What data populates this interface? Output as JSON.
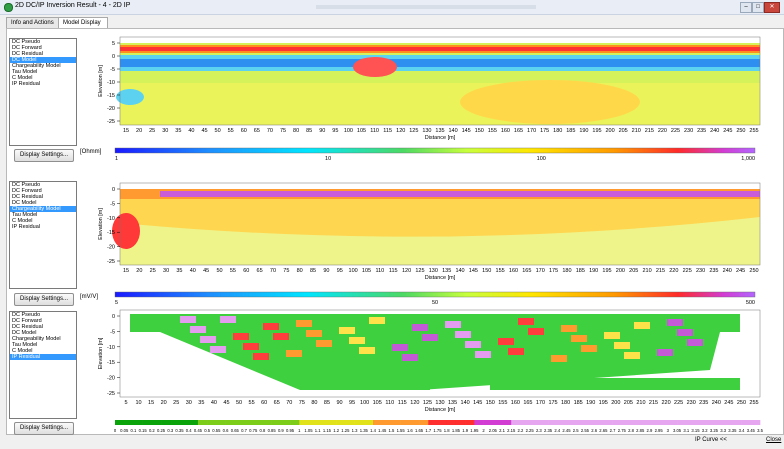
{
  "window": {
    "title": "2D DC/IP Inversion Result - 4 - 2D IP",
    "btn_min": "–",
    "btn_max": "□",
    "btn_close": "✕"
  },
  "tabs": [
    "Info and Actions",
    "Model Display"
  ],
  "panels": [
    {
      "items": [
        "DC Pseudo",
        "DC Forward",
        "DC Residual",
        "DC Model",
        "Chargeability Model",
        "Tau Model",
        "C Model",
        "IP Residual"
      ],
      "selected": 3,
      "display_settings": "Display Settings...",
      "colorbar_unit": "[Ohmm]",
      "colorbar_labels": [
        "1",
        "10",
        "100",
        "1,000"
      ]
    },
    {
      "items": [
        "DC Pseudo",
        "DC Forward",
        "DC Residual",
        "DC Model",
        "Chargeability Model",
        "Tau Model",
        "C Model",
        "IP Residual"
      ],
      "selected": 4,
      "display_settings": "Display Settings...",
      "colorbar_unit": "[mV/V]",
      "colorbar_labels": [
        "5",
        "50",
        "500"
      ]
    },
    {
      "items": [
        "DC Pseudo",
        "DC Forward",
        "DC Residual",
        "DC Model",
        "Chargeability Model",
        "Tau Model",
        "C Model",
        "IP Residual"
      ],
      "selected": 7,
      "display_settings": "Display Settings...",
      "colorbar_unit": "",
      "colorbar_labels": [
        "0",
        "0.05",
        "0.1",
        "0.15",
        "0.2",
        "0.25",
        "0.3",
        "0.35",
        "0.4",
        "0.45",
        "0.5",
        "0.55",
        "0.6",
        "0.65",
        "0.7",
        "0.75",
        "0.8",
        "0.85",
        "0.9",
        "0.95",
        "1",
        "1.05",
        "1.1",
        "1.15",
        "1.2",
        "1.25",
        "1.3",
        "1.35",
        "1.4",
        "1.45",
        "1.5",
        "1.55",
        "1.6",
        "1.65",
        "1.7",
        "1.75",
        "1.8",
        "1.85",
        "1.9",
        "1.95",
        "2",
        "2.05",
        "2.1",
        "2.15",
        "2.2",
        "2.25",
        "2.3",
        "2.35",
        "2.4",
        "2.45",
        "2.5",
        "2.55",
        "2.6",
        "2.65",
        "2.7",
        "2.75",
        "2.8",
        "2.85",
        "2.9",
        "2.95",
        "3",
        "3.05",
        "3.1",
        "3.15",
        "3.2",
        "3.25",
        "3.3",
        "3.35",
        "3.4",
        "3.45",
        "3.5"
      ]
    }
  ],
  "plots": [
    {
      "ylabel": "Elevation [m]",
      "xlabel": "Distance [m]",
      "yticks": [
        "5",
        "0",
        "-5",
        "-10",
        "-15",
        "-20",
        "-25"
      ],
      "xticks": [
        "15",
        "20",
        "25",
        "30",
        "35",
        "40",
        "45",
        "50",
        "55",
        "60",
        "65",
        "70",
        "75",
        "80",
        "85",
        "90",
        "95",
        "100",
        "105",
        "110",
        "115",
        "120",
        "125",
        "130",
        "135",
        "140",
        "145",
        "150",
        "155",
        "160",
        "165",
        "170",
        "175",
        "180",
        "185",
        "190",
        "195",
        "200",
        "205",
        "210",
        "215",
        "220",
        "225",
        "230",
        "235",
        "240",
        "245",
        "250",
        "255"
      ]
    },
    {
      "ylabel": "Elevation [m]",
      "xlabel": "Distance [m]",
      "yticks": [
        "0",
        "-5",
        "-10",
        "-15",
        "-20",
        "-25"
      ],
      "xticks": [
        "15",
        "20",
        "25",
        "30",
        "35",
        "40",
        "45",
        "50",
        "55",
        "60",
        "65",
        "70",
        "75",
        "80",
        "85",
        "90",
        "95",
        "100",
        "105",
        "110",
        "115",
        "120",
        "125",
        "130",
        "135",
        "140",
        "145",
        "150",
        "155",
        "160",
        "165",
        "170",
        "175",
        "180",
        "185",
        "190",
        "195",
        "200",
        "205",
        "210",
        "215",
        "220",
        "225",
        "230",
        "235",
        "240",
        "245",
        "250"
      ]
    },
    {
      "ylabel": "Elevation [m]",
      "xlabel": "Distance [m]",
      "yticks": [
        "0",
        "-5",
        "-10",
        "-15",
        "-20",
        "-25"
      ],
      "xticks": [
        "5",
        "10",
        "15",
        "20",
        "25",
        "30",
        "35",
        "40",
        "45",
        "50",
        "55",
        "60",
        "65",
        "70",
        "75",
        "80",
        "85",
        "90",
        "95",
        "100",
        "105",
        "110",
        "115",
        "120",
        "125",
        "130",
        "135",
        "140",
        "145",
        "150",
        "155",
        "160",
        "165",
        "170",
        "175",
        "180",
        "185",
        "190",
        "195",
        "200",
        "205",
        "210",
        "215",
        "220",
        "225",
        "230",
        "235",
        "240",
        "245",
        "250",
        "255"
      ]
    }
  ],
  "statusbar": {
    "ip_curve": "IP Curve <<",
    "close": "Close"
  }
}
